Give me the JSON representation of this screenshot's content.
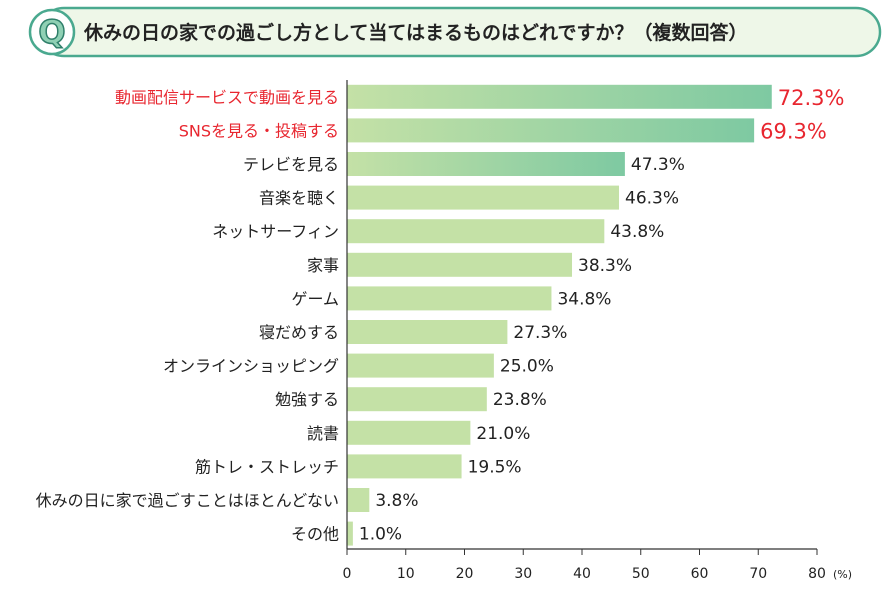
{
  "question_mark": "Q",
  "chart_data": {
    "type": "bar",
    "orientation": "horizontal",
    "title": "休みの日の家での過ごし方として当てはまるものはどれですか？（複数回答）",
    "categories": [
      "動画配信サービスで動画を見る",
      "SNSを見る・投稿する",
      "テレビを見る",
      "音楽を聴く",
      "ネットサーフィン",
      "家事",
      "ゲーム",
      "寝だめする",
      "オンラインショッピング",
      "勉強する",
      "読書",
      "筋トレ・ストレッチ",
      "休みの日に家で過ごすことはほとんどない",
      "その他"
    ],
    "values": [
      72.3,
      69.3,
      47.3,
      46.3,
      43.8,
      38.3,
      34.8,
      27.3,
      25.0,
      23.8,
      21.0,
      19.5,
      3.8,
      1.0
    ],
    "value_labels": [
      "72.3%",
      "69.3%",
      "47.3%",
      "46.3%",
      "43.8%",
      "38.3%",
      "34.8%",
      "27.3%",
      "25.0%",
      "23.8%",
      "21.0%",
      "19.5%",
      "3.8%",
      "1.0%"
    ],
    "highlight_top": 2,
    "gradient_top": 3,
    "xlim": [
      0,
      80
    ],
    "x_ticks": [
      0,
      10,
      20,
      30,
      40,
      50,
      60,
      70,
      80
    ],
    "x_unit": "(%)",
    "grid": false,
    "colors": {
      "bar": "#c4e1a6",
      "bar_gradient_end": "#7ec9a2",
      "highlight_text": "#e8262f",
      "title_border": "#4aa98f",
      "title_bg": "#eef7e8",
      "q_fill": "#8fd0b4"
    }
  }
}
